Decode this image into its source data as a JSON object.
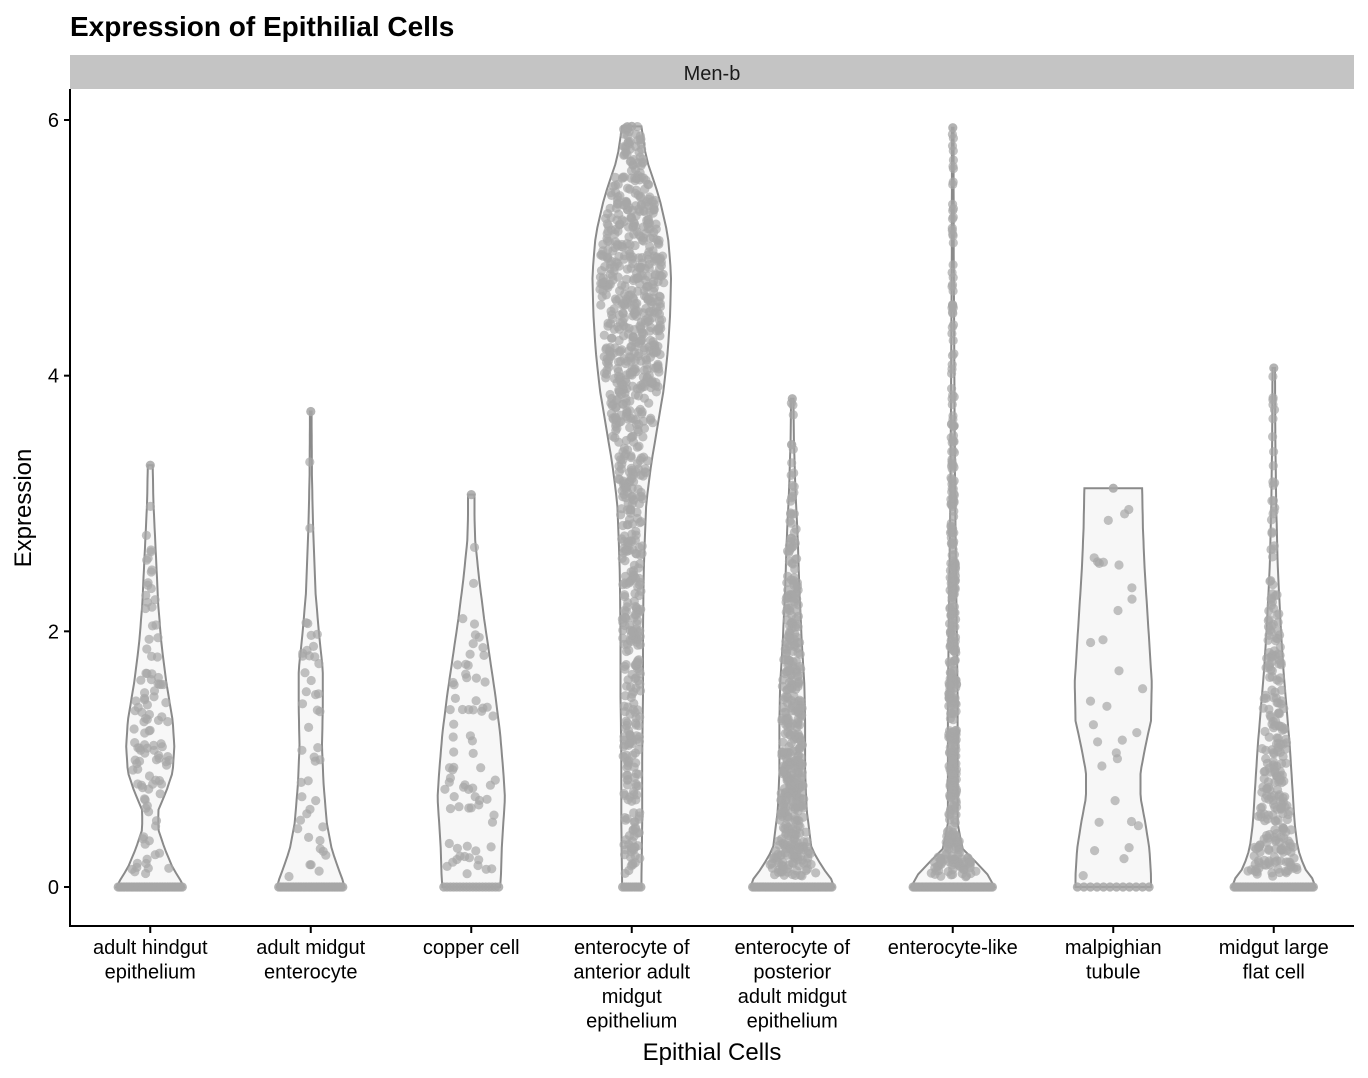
{
  "chart_data": {
    "type": "violin",
    "title": "Expression of Epithilial Cells",
    "facet": "Men-b",
    "xlabel": "Epithial Cells",
    "ylabel": "Expression",
    "ylim": [
      -0.3,
      6.25
    ],
    "yticks": [
      0,
      2,
      4,
      6
    ],
    "grid": false,
    "legend": "none",
    "violin_fill": "#f7f7f7",
    "violin_stroke": "#8a8a8a",
    "point_color": "#a6a6a6",
    "categories": [
      {
        "label_lines": [
          "adult hindgut",
          "epithelium"
        ],
        "max": 3.3,
        "zeros": 40,
        "profile": [
          [
            0,
            0.42
          ],
          [
            0.05,
            0.38
          ],
          [
            0.15,
            0.28
          ],
          [
            0.3,
            0.18
          ],
          [
            0.45,
            0.1
          ],
          [
            0.6,
            0.1
          ],
          [
            0.75,
            0.2
          ],
          [
            0.9,
            0.28
          ],
          [
            1.1,
            0.3
          ],
          [
            1.3,
            0.28
          ],
          [
            1.6,
            0.2
          ],
          [
            1.9,
            0.14
          ],
          [
            2.2,
            0.1
          ],
          [
            2.6,
            0.07
          ],
          [
            3.0,
            0.04
          ],
          [
            3.3,
            0.03
          ]
        ],
        "points": 110
      },
      {
        "label_lines": [
          "adult midgut",
          "enterocyte"
        ],
        "max": 3.72,
        "zeros": 40,
        "profile": [
          [
            0,
            0.42
          ],
          [
            0.05,
            0.4
          ],
          [
            0.15,
            0.34
          ],
          [
            0.3,
            0.26
          ],
          [
            0.5,
            0.2
          ],
          [
            0.8,
            0.16
          ],
          [
            1.1,
            0.14
          ],
          [
            1.4,
            0.15
          ],
          [
            1.7,
            0.15
          ],
          [
            2.0,
            0.1
          ],
          [
            2.3,
            0.06
          ],
          [
            2.8,
            0.03
          ],
          [
            3.2,
            0.015
          ],
          [
            3.72,
            0.01
          ]
        ],
        "points": 45
      },
      {
        "label_lines": [
          "copper cell"
        ],
        "max": 3.07,
        "zeros": 18,
        "profile": [
          [
            0,
            0.36
          ],
          [
            0.1,
            0.37
          ],
          [
            0.3,
            0.38
          ],
          [
            0.5,
            0.4
          ],
          [
            0.7,
            0.42
          ],
          [
            0.9,
            0.4
          ],
          [
            1.2,
            0.36
          ],
          [
            1.5,
            0.3
          ],
          [
            1.8,
            0.23
          ],
          [
            2.1,
            0.16
          ],
          [
            2.4,
            0.1
          ],
          [
            2.7,
            0.05
          ],
          [
            2.9,
            0.04
          ],
          [
            3.07,
            0.04
          ]
        ],
        "points": 75
      },
      {
        "label_lines": [
          "enterocyte of",
          "anterior adult",
          "midgut",
          "epithelium"
        ],
        "max": 5.95,
        "zeros": 10,
        "profile": [
          [
            0,
            0.12
          ],
          [
            0.5,
            0.13
          ],
          [
            1.0,
            0.13
          ],
          [
            1.5,
            0.14
          ],
          [
            2.0,
            0.14
          ],
          [
            2.5,
            0.15
          ],
          [
            3.0,
            0.18
          ],
          [
            3.3,
            0.24
          ],
          [
            3.6,
            0.32
          ],
          [
            3.9,
            0.4
          ],
          [
            4.2,
            0.45
          ],
          [
            4.5,
            0.48
          ],
          [
            4.8,
            0.49
          ],
          [
            5.1,
            0.45
          ],
          [
            5.4,
            0.34
          ],
          [
            5.7,
            0.18
          ],
          [
            5.95,
            0.12
          ]
        ],
        "points": 900
      },
      {
        "label_lines": [
          "enterocyte of",
          "posterior",
          "adult midgut",
          "epithelium"
        ],
        "max": 3.82,
        "zeros": 50,
        "profile": [
          [
            0,
            0.52
          ],
          [
            0.05,
            0.5
          ],
          [
            0.15,
            0.38
          ],
          [
            0.3,
            0.24
          ],
          [
            0.6,
            0.18
          ],
          [
            0.9,
            0.16
          ],
          [
            1.3,
            0.16
          ],
          [
            1.6,
            0.15
          ],
          [
            1.9,
            0.12
          ],
          [
            2.3,
            0.09
          ],
          [
            2.7,
            0.07
          ],
          [
            3.1,
            0.04
          ],
          [
            3.5,
            0.02
          ],
          [
            3.82,
            0.015
          ]
        ],
        "points": 450
      },
      {
        "label_lines": [
          "enterocyte-like"
        ],
        "max": 5.94,
        "zeros": 60,
        "profile": [
          [
            0,
            0.52
          ],
          [
            0.05,
            0.5
          ],
          [
            0.15,
            0.36
          ],
          [
            0.3,
            0.12
          ],
          [
            0.5,
            0.06
          ],
          [
            1.0,
            0.06
          ],
          [
            1.5,
            0.06
          ],
          [
            2.0,
            0.05
          ],
          [
            3.0,
            0.03
          ],
          [
            4.0,
            0.02
          ],
          [
            5.0,
            0.012
          ],
          [
            5.94,
            0.01
          ]
        ],
        "points": 420
      },
      {
        "label_lines": [
          "malpighian",
          "tubule"
        ],
        "max": 3.12,
        "zeros": 12,
        "profile": [
          [
            0,
            0.47
          ],
          [
            0.1,
            0.47
          ],
          [
            0.3,
            0.45
          ],
          [
            0.5,
            0.4
          ],
          [
            0.7,
            0.34
          ],
          [
            0.9,
            0.34
          ],
          [
            1.1,
            0.4
          ],
          [
            1.3,
            0.47
          ],
          [
            1.6,
            0.48
          ],
          [
            1.9,
            0.45
          ],
          [
            2.2,
            0.42
          ],
          [
            2.5,
            0.39
          ],
          [
            2.8,
            0.37
          ],
          [
            3.12,
            0.36
          ]
        ],
        "points": 32
      },
      {
        "label_lines": [
          "midgut large",
          "flat cell"
        ],
        "max": 4.06,
        "zeros": 50,
        "profile": [
          [
            0,
            0.52
          ],
          [
            0.05,
            0.5
          ],
          [
            0.15,
            0.38
          ],
          [
            0.3,
            0.3
          ],
          [
            0.5,
            0.26
          ],
          [
            0.7,
            0.24
          ],
          [
            0.9,
            0.22
          ],
          [
            1.1,
            0.2
          ],
          [
            1.4,
            0.16
          ],
          [
            1.7,
            0.12
          ],
          [
            2.0,
            0.09
          ],
          [
            2.5,
            0.05
          ],
          [
            3.0,
            0.03
          ],
          [
            3.5,
            0.02
          ],
          [
            4.06,
            0.015
          ]
        ],
        "points": 280
      }
    ]
  }
}
